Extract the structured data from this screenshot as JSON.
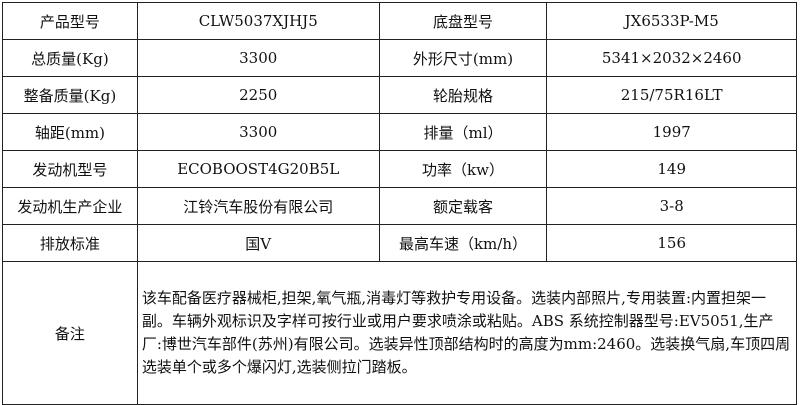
{
  "rows": [
    {
      "label1": "产品型号",
      "value1": "CLW5037XJHJ5",
      "label2": "底盘型号",
      "value2": "JX6533P-M5"
    },
    {
      "label1": "总质量(Kg)",
      "value1": "3300",
      "label2": "外形尺寸(mm)",
      "value2": "5341×2032×2460"
    },
    {
      "label1": "整备质量(Kg)",
      "value1": "2250",
      "label2": "轮胎规格",
      "value2": "215/75R16LT"
    },
    {
      "label1": "轴距(mm)",
      "value1": "3300",
      "label2": "排量（ml）",
      "value2": "1997"
    },
    {
      "label1": "发动机型号",
      "value1": "ECOBOOST4G20B5L",
      "label2": "功率（kw）",
      "value2": "149"
    },
    {
      "label1": "发动机生产企业",
      "value1": "江铃汽车股份有限公司",
      "label2": "额定载客",
      "value2": "3-8"
    },
    {
      "label1": "排放标准",
      "value1": "国Ⅴ",
      "label2": "最高车速（km/h）",
      "value2": "156"
    }
  ],
  "notes": {
    "label": "备注",
    "text": "该车配备医疗器械柜,担架,氧气瓶,消毒灯等救护专用设备。选装内部照片,专用装置:内置担架一副。车辆外观标识及字样可按行业或用户要求喷涂或粘贴。ABS 系统控制器型号:EV5051,生产厂:博世汽车部件(苏州)有限公司。选装异性顶部结构时的高度为mm:2460。选装换气扇,车顶四周选装单个或多个爆闪灯,选装侧拉门踏板。"
  }
}
